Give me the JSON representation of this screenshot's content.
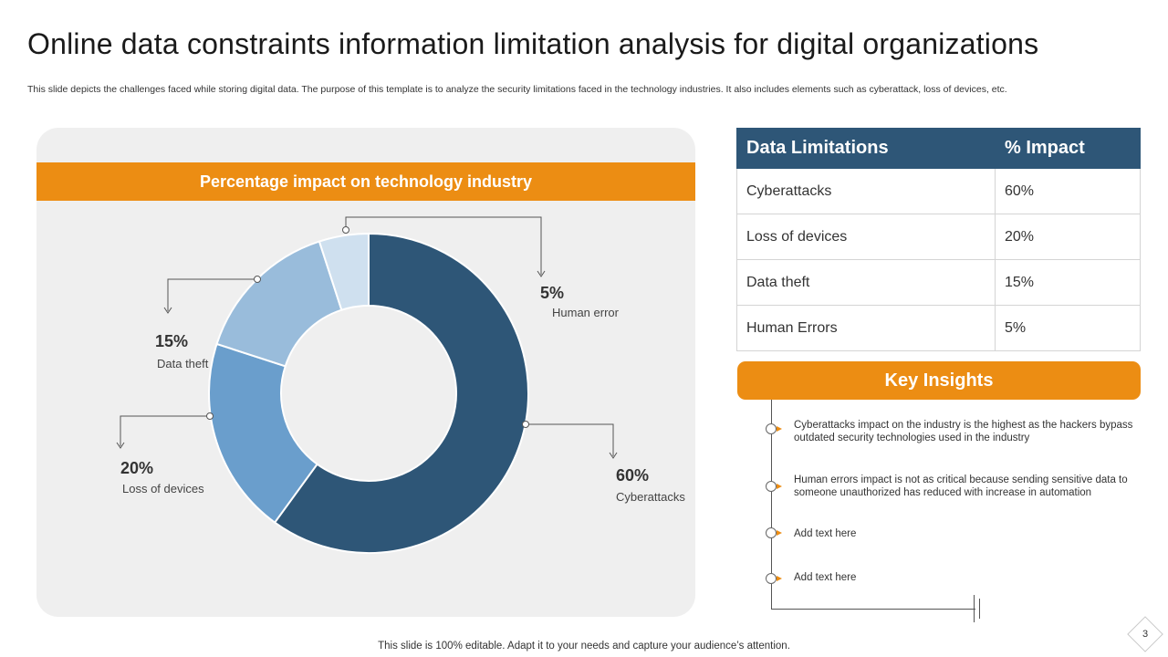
{
  "slide": {
    "title": "Online data constraints information limitation analysis for digital organizations",
    "subtitle": "This slide depicts the challenges faced while storing digital data. The purpose of this template is to analyze the security limitations faced in the technology industries. It also includes elements such as cyberattack, loss of devices, etc.",
    "footer": "This slide is 100% editable. Adapt it to your needs and capture your audience’s attention.",
    "page_number": "3"
  },
  "chart_data": {
    "type": "pie",
    "title": "Percentage impact on technology industry",
    "donut": true,
    "slices": [
      {
        "pct": "60%",
        "name": "Cyberattacks",
        "value": 60,
        "color": "#2e5677"
      },
      {
        "pct": "20%",
        "name": "Loss of devices",
        "value": 20,
        "color": "#6a9ecc"
      },
      {
        "pct": "15%",
        "name": "Data theft",
        "value": 15,
        "color": "#99bcdb"
      },
      {
        "pct": "5%",
        "name": "Human error",
        "value": 5,
        "color": "#cfe0ef"
      }
    ]
  },
  "table": {
    "headers": [
      "Data Limitations",
      "% Impact"
    ],
    "rows": [
      [
        "Cyberattacks",
        "60%"
      ],
      [
        "Loss of devices",
        "20%"
      ],
      [
        "Data theft",
        "15%"
      ],
      [
        "Human  Errors",
        "5%"
      ]
    ]
  },
  "insights": {
    "title": "Key Insights",
    "items": [
      "Cyberattacks impact on the industry is the highest as the hackers bypass outdated security technologies used in the industry",
      "Human errors impact is not as critical because sending sensitive data to someone unauthorized has reduced with increase in automation",
      "Add text here",
      "Add text here"
    ]
  },
  "colors": {
    "accent": "#ec8d13",
    "navy": "#2e5677",
    "panel": "#efefef"
  }
}
